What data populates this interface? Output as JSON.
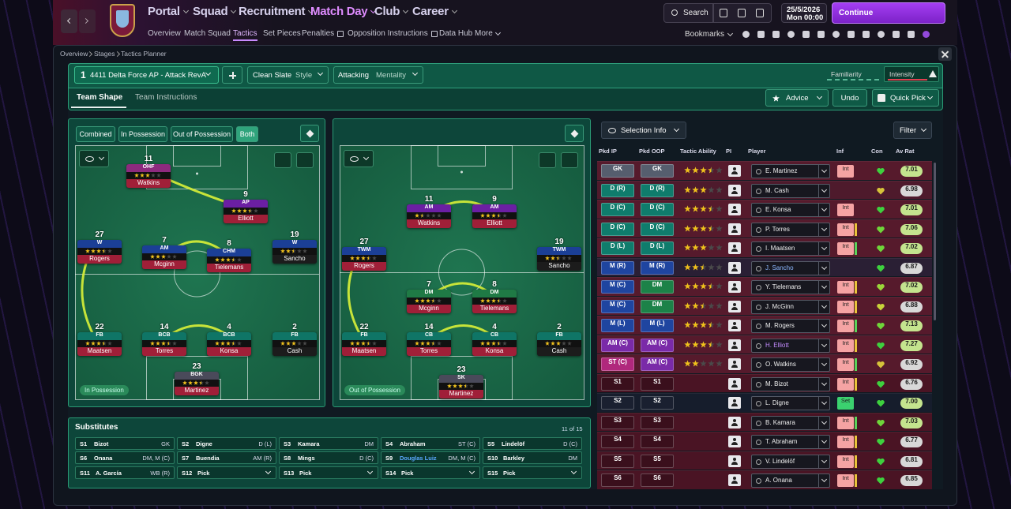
{
  "nav": {
    "menu": [
      "Portal",
      "Squad",
      "Recruitment",
      "Match Day",
      "Club",
      "Career"
    ],
    "submenu": [
      "Overview",
      "Match Squad",
      "Tactics",
      "Set Pieces",
      "Penalties",
      "Opposition Instructions",
      "Data Hub",
      "More"
    ],
    "search": "Search",
    "date": "25/5/2026",
    "day": "Mon",
    "time": "00:00",
    "continue": "Continue",
    "bookmarks": "Bookmarks"
  },
  "breadcrumb": [
    "Overview",
    "Stages",
    "Tactics Planner"
  ],
  "tactic": {
    "slot": 1,
    "name": "4411 Delta Force AP - Attack RevA",
    "style_value": "Clean Slate",
    "style_label": "Style",
    "mentality_value": "Attacking",
    "mentality_label": "Mentality",
    "familiarity": "Familiarity",
    "intensity": "Intensity"
  },
  "tabs": [
    "Team Shape",
    "Team Instructions"
  ],
  "actions": [
    "Advice",
    "Undo",
    "Quick Pick"
  ],
  "phase_buttons": [
    "Combined",
    "In Possession",
    "Out of Possession",
    "Both"
  ],
  "pitches": [
    {
      "label": "In Possession",
      "players": [
        {
          "number": 11,
          "role": "OHF",
          "name": "Watkins",
          "stars": 3,
          "color": "#8d2a7e",
          "bar": "#a01f38"
        },
        {
          "number": 9,
          "role": "AP",
          "name": "Elliott",
          "stars": 3.5,
          "color": "#6b1fa3",
          "bar": "#a01f38"
        },
        {
          "number": 27,
          "role": "W",
          "name": "Rogers",
          "stars": 3.5,
          "color": "#1b3f96",
          "bar": "#a01f38"
        },
        {
          "number": 7,
          "role": "AM",
          "name": "Mcginn",
          "stars": 3,
          "color": "#1b3f96",
          "bar": "#a01f38"
        },
        {
          "number": 8,
          "role": "CHM",
          "name": "Tielemans",
          "stars": 3.5,
          "color": "#1b3f96",
          "bar": "#a01f38"
        },
        {
          "number": 19,
          "role": "W",
          "name": "Sancho",
          "stars": 2.5,
          "color": "#1b3f96",
          "bar": "#1c1c1c"
        },
        {
          "number": 22,
          "role": "FB",
          "name": "Maatsen",
          "stars": 3.5,
          "color": "#0f7566",
          "bar": "#a01f38"
        },
        {
          "number": 14,
          "role": "BCB",
          "name": "Torres",
          "stars": 3.5,
          "color": "#0f7566",
          "bar": "#a01f38"
        },
        {
          "number": 4,
          "role": "BCB",
          "name": "Konsa",
          "stars": 3.5,
          "color": "#0f7566",
          "bar": "#a01f38"
        },
        {
          "number": 2,
          "role": "FB",
          "name": "Cash",
          "stars": 3,
          "color": "#0f7566",
          "bar": "#1c1c1c"
        },
        {
          "number": 23,
          "role": "BGK",
          "name": "Martinez",
          "stars": 3.5,
          "color": "#4a4a5a",
          "bar": "#a01f38"
        }
      ]
    },
    {
      "label": "Out of Possession",
      "players": [
        {
          "number": 11,
          "role": "AM",
          "name": "Watkins",
          "stars": 1.5,
          "color": "#6b1fa3",
          "bar": "#a01f38"
        },
        {
          "number": 9,
          "role": "AM",
          "name": "Elliott",
          "stars": 3.5,
          "color": "#6b1fa3",
          "bar": "#a01f38"
        },
        {
          "number": 27,
          "role": "TWM",
          "name": "Rogers",
          "stars": 3.5,
          "color": "#1b3f96",
          "bar": "#a01f38"
        },
        {
          "number": 19,
          "role": "TWM",
          "name": "Sancho",
          "stars": 2.5,
          "color": "#1b3f96",
          "bar": "#1c1c1c"
        },
        {
          "number": 7,
          "role": "DM",
          "name": "Mcginn",
          "stars": 3.5,
          "color": "#1f7a45",
          "bar": "#a01f38"
        },
        {
          "number": 8,
          "role": "DM",
          "name": "Tielemans",
          "stars": 3.5,
          "color": "#1f7a45",
          "bar": "#a01f38"
        },
        {
          "number": 22,
          "role": "FB",
          "name": "Maatsen",
          "stars": 3.5,
          "color": "#0f7566",
          "bar": "#a01f38"
        },
        {
          "number": 14,
          "role": "CB",
          "name": "Torres",
          "stars": 3.5,
          "color": "#0f7566",
          "bar": "#a01f38"
        },
        {
          "number": 4,
          "role": "CB",
          "name": "Konsa",
          "stars": 3.5,
          "color": "#0f7566",
          "bar": "#a01f38"
        },
        {
          "number": 2,
          "role": "FB",
          "name": "Cash",
          "stars": 3,
          "color": "#0f7566",
          "bar": "#1c1c1c"
        },
        {
          "number": 23,
          "role": "SK",
          "name": "Martinez",
          "stars": 3.5,
          "color": "#4a4a5a",
          "bar": "#a01f38"
        }
      ]
    }
  ],
  "substitutes": {
    "title": "Substitutes",
    "count": "11 of 15",
    "slots": [
      {
        "slot": "S1",
        "name": "Bizot",
        "position": "GK"
      },
      {
        "slot": "S2",
        "name": "Digne",
        "position": "D (L)"
      },
      {
        "slot": "S3",
        "name": "Kamara",
        "position": "DM"
      },
      {
        "slot": "S4",
        "name": "Abraham",
        "position": "ST (C)"
      },
      {
        "slot": "S5",
        "name": "Lindelöf",
        "position": "D (C)"
      },
      {
        "slot": "S6",
        "name": "Onana",
        "position": "DM, M (C)"
      },
      {
        "slot": "S7",
        "name": "Buendia",
        "position": "AM (R)"
      },
      {
        "slot": "S8",
        "name": "Mings",
        "position": "D (C)"
      },
      {
        "slot": "S9",
        "name": "Douglas Luiz",
        "position": "DM, M (C)"
      },
      {
        "slot": "S10",
        "name": "Barkley",
        "position": "DM"
      },
      {
        "slot": "S11",
        "name": "A. García",
        "position": "WB (R)"
      },
      {
        "slot": "S12",
        "name": "Pick"
      },
      {
        "slot": "S13",
        "name": "Pick"
      },
      {
        "slot": "S14",
        "name": "Pick"
      },
      {
        "slot": "S15",
        "name": "Pick"
      }
    ]
  },
  "selection": {
    "button": "Selection Info",
    "filter": "Filter",
    "columns": [
      "Pkd IP",
      "Pkd OOP",
      "Tactic Ability",
      "PI",
      "Player",
      "Inf",
      "Con",
      "Av Rat"
    ],
    "rows": [
      {
        "ip": "GK",
        "ip_color": "#565e6e",
        "oop": "GK",
        "oop_color": "#565e6e",
        "stars": 3.5,
        "player": "E. Martinez",
        "inf": "Int",
        "rating": "7.01"
      },
      {
        "ip": "D (R)",
        "ip_color": "#0f7c6c",
        "oop": "D (R)",
        "oop_color": "#0f7c6c",
        "stars": 3,
        "player": "M. Cash",
        "rating": "6.98"
      },
      {
        "ip": "D (C)",
        "ip_color": "#0f7c6c",
        "oop": "D (C)",
        "oop_color": "#0f7c6c",
        "stars": 3.5,
        "player": "E. Konsa",
        "inf": "Int",
        "rating": "7.01"
      },
      {
        "ip": "D (C)",
        "ip_color": "#0f7c6c",
        "oop": "D (C)",
        "oop_color": "#0f7c6c",
        "stars": 3.5,
        "player": "P. Torres",
        "inf": "Int",
        "rating": "7.06"
      },
      {
        "ip": "D (L)",
        "ip_color": "#0f7c6c",
        "oop": "D (L)",
        "oop_color": "#0f7c6c",
        "stars": 3,
        "player": "I. Maatsen",
        "inf": "Int",
        "rating": "7.02"
      },
      {
        "ip": "M (R)",
        "ip_color": "#1f45a0",
        "oop": "M (R)",
        "oop_color": "#1f45a0",
        "stars": 2.5,
        "player": "J. Sancho",
        "rating": "6.87"
      },
      {
        "ip": "M (C)",
        "ip_color": "#1f45a0",
        "oop": "DM",
        "oop_color": "#1c8248",
        "stars": 3.5,
        "player": "Y. Tielemans",
        "inf": "Int",
        "rating": "7.02"
      },
      {
        "ip": "M (C)",
        "ip_color": "#1f45a0",
        "oop": "DM",
        "oop_color": "#1c8248",
        "stars": 2.5,
        "player": "J. McGinn",
        "inf": "Int",
        "rating": "6.88"
      },
      {
        "ip": "M (L)",
        "ip_color": "#1f45a0",
        "oop": "M (L)",
        "oop_color": "#1f45a0",
        "stars": 3.5,
        "player": "M. Rogers",
        "inf": "Int",
        "rating": "7.13"
      },
      {
        "ip": "AM (C)",
        "ip_color": "#7a2aa8",
        "oop": "AM (C)",
        "oop_color": "#7a2aa8",
        "stars": 3.5,
        "player": "H. Elliott",
        "inf": "Int",
        "rating": "7.27"
      },
      {
        "ip": "ST (C)",
        "ip_color": "#b0287c",
        "oop": "AM (C)",
        "oop_color": "#7a2aa8",
        "stars": 2,
        "player": "O. Watkins",
        "inf": "Int",
        "rating": "6.92"
      },
      {
        "ip": "S1",
        "ip_color": "#3a0f1c",
        "oop": "S1",
        "oop_color": "#3a0f1c",
        "player": "M. Bizot",
        "inf": "Int",
        "rating": "6.76"
      },
      {
        "ip": "S2",
        "ip_color": "#1a2030",
        "oop": "S2",
        "oop_color": "#1a2030",
        "player": "L. Digne",
        "inf": "Set",
        "rating": "7.00"
      },
      {
        "ip": "S3",
        "ip_color": "#3a0f1c",
        "oop": "S3",
        "oop_color": "#3a0f1c",
        "player": "B. Kamara",
        "inf": "Int",
        "rating": "7.03"
      },
      {
        "ip": "S4",
        "ip_color": "#3a0f1c",
        "oop": "S4",
        "oop_color": "#3a0f1c",
        "player": "T. Abraham",
        "inf": "Int",
        "rating": "6.77"
      },
      {
        "ip": "S5",
        "ip_color": "#3a0f1c",
        "oop": "S5",
        "oop_color": "#3a0f1c",
        "player": "V. Lindelöf",
        "inf": "Int",
        "rating": "6.81"
      },
      {
        "ip": "S6",
        "ip_color": "#3a0f1c",
        "oop": "S6",
        "oop_color": "#3a0f1c",
        "player": "A. Onana",
        "inf": "Int",
        "rating": "6.85"
      }
    ]
  }
}
